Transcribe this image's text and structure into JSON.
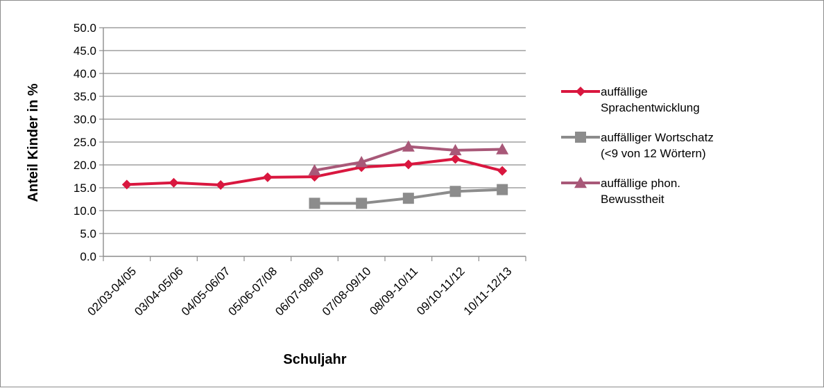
{
  "chart_data": {
    "type": "line",
    "title": "",
    "xlabel": "Schuljahr",
    "ylabel": "Anteil Kinder in %",
    "categories": [
      "02/03-04/05",
      "03/04-05/06",
      "04/05-06/07",
      "05/06-07/08",
      "06/07-08/09",
      "07/08-09/10",
      "08/09-10/11",
      "09/10-11/12",
      "10/11-12/13"
    ],
    "ylim": [
      0,
      50
    ],
    "yticks": [
      "0.0",
      "5.0",
      "10.0",
      "15.0",
      "20.0",
      "25.0",
      "30.0",
      "35.0",
      "40.0",
      "45.0",
      "50.0"
    ],
    "grid": true,
    "legend_position": "right",
    "series": [
      {
        "name_lines": [
          "auffällige",
          "Sprachentwicklung"
        ],
        "color": "#d9173f",
        "marker": "diamond",
        "values": [
          15.7,
          16.1,
          15.6,
          17.3,
          17.4,
          19.5,
          20.1,
          21.3,
          18.7
        ]
      },
      {
        "name_lines": [
          "auffälliger Wortschatz",
          "(<9 von 12 Wörtern)"
        ],
        "color": "#8c8c8c",
        "marker": "square",
        "values": [
          null,
          null,
          null,
          null,
          11.6,
          11.6,
          12.7,
          14.2,
          14.6
        ]
      },
      {
        "name_lines": [
          "auffällige phon.",
          "Bewusstheit"
        ],
        "color": "#a85878",
        "marker": "triangle",
        "values": [
          null,
          null,
          null,
          null,
          18.8,
          20.6,
          24.0,
          23.2,
          23.4
        ]
      }
    ]
  }
}
